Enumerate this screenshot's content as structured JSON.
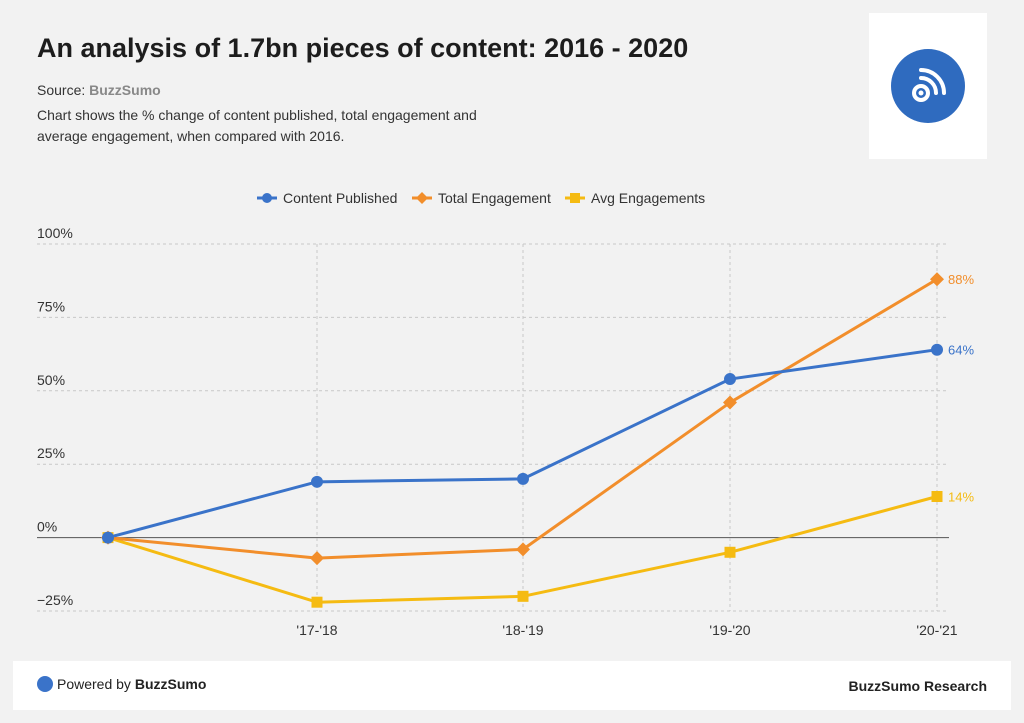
{
  "header": {
    "title": "An analysis of 1.7bn pieces of content: 2016 - 2020",
    "source_label": "Source:",
    "source_name": "BuzzSumo",
    "description": "Chart shows the % change of content published, total engagement and average engagement, when compared with 2016."
  },
  "logo": {
    "icon": "rss-feed-icon"
  },
  "colors": {
    "content_published": "#3a73c9",
    "total_engagement": "#f28e2b",
    "avg_engagements": "#f5bb12",
    "logo": "#2f6bbf"
  },
  "chart_data": {
    "type": "line",
    "title": "",
    "xlabel": "",
    "ylabel": "",
    "categories": [
      "",
      "'17-'18",
      "'18-'19",
      "'19-'20",
      "'20-'21"
    ],
    "ylim": [
      -25,
      100
    ],
    "yticks": [
      100,
      75,
      50,
      25,
      0,
      -25
    ],
    "ytick_labels": [
      "100%",
      "75%",
      "50%",
      "25%",
      "0%",
      "−25%"
    ],
    "grid": true,
    "legend_position": "top-center",
    "series": [
      {
        "name": "Content Published",
        "marker": "circle",
        "values": [
          0,
          19,
          20,
          54,
          64
        ],
        "end_label": "64%"
      },
      {
        "name": "Total Engagement",
        "marker": "diamond",
        "values": [
          0,
          -7,
          -4,
          46,
          88
        ],
        "end_label": "88%"
      },
      {
        "name": "Avg Engagements",
        "marker": "square",
        "values": [
          0,
          -22,
          -20,
          -5,
          14
        ],
        "end_label": "14%"
      }
    ]
  },
  "footer": {
    "powered_prefix": "Powered by",
    "powered_brand": "BuzzSumo",
    "research": "BuzzSumo Research"
  }
}
